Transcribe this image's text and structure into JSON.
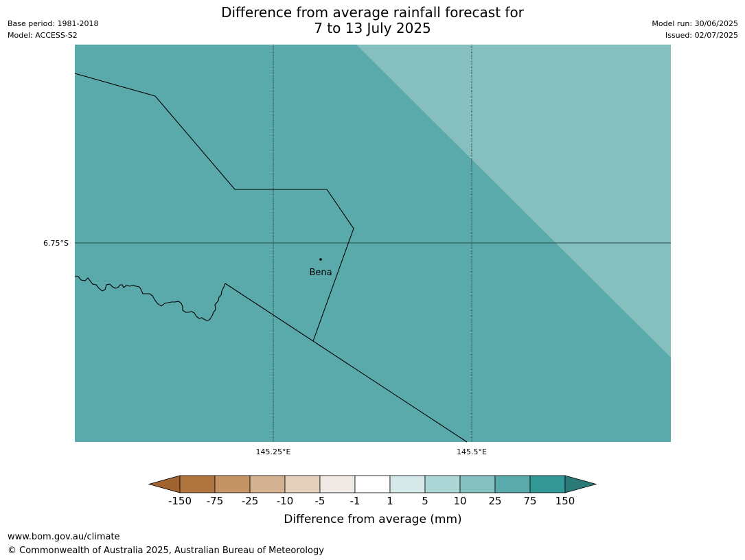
{
  "title_line1": "Difference from average rainfall forecast for",
  "title_line2": "7 to 13 July 2025",
  "base_period": "Base period: 1981-2018",
  "model": "Model: ACCESS-S2",
  "model_run": "Model run: 30/06/2025",
  "issued": "Issued: 02/07/2025",
  "map": {
    "lat_label": "6.75°S",
    "lon_labels": [
      "145.25°E",
      "145.5°E"
    ],
    "place_label": "Bena",
    "colors": {
      "main_fill": "#5baaab",
      "upper_right_fill": "#85bfbf"
    }
  },
  "legend": {
    "title": "Difference from average (mm)",
    "ticks": [
      "-150",
      "-75",
      "-25",
      "-10",
      "-5",
      "-1",
      "1",
      "5",
      "10",
      "25",
      "75",
      "150"
    ],
    "colors": [
      "#a0622e",
      "#b0753e",
      "#c49466",
      "#d4b191",
      "#e3d0bd",
      "#efeae6",
      "#ffffff",
      "#d5e9e8",
      "#add6d6",
      "#84c0bf",
      "#5aaaab",
      "#339896",
      "#2c7a78"
    ]
  },
  "footer": {
    "url": "www.bom.gov.au/climate",
    "copyright": "© Commonwealth of Australia 2025, Australian Bureau of Meteorology"
  }
}
